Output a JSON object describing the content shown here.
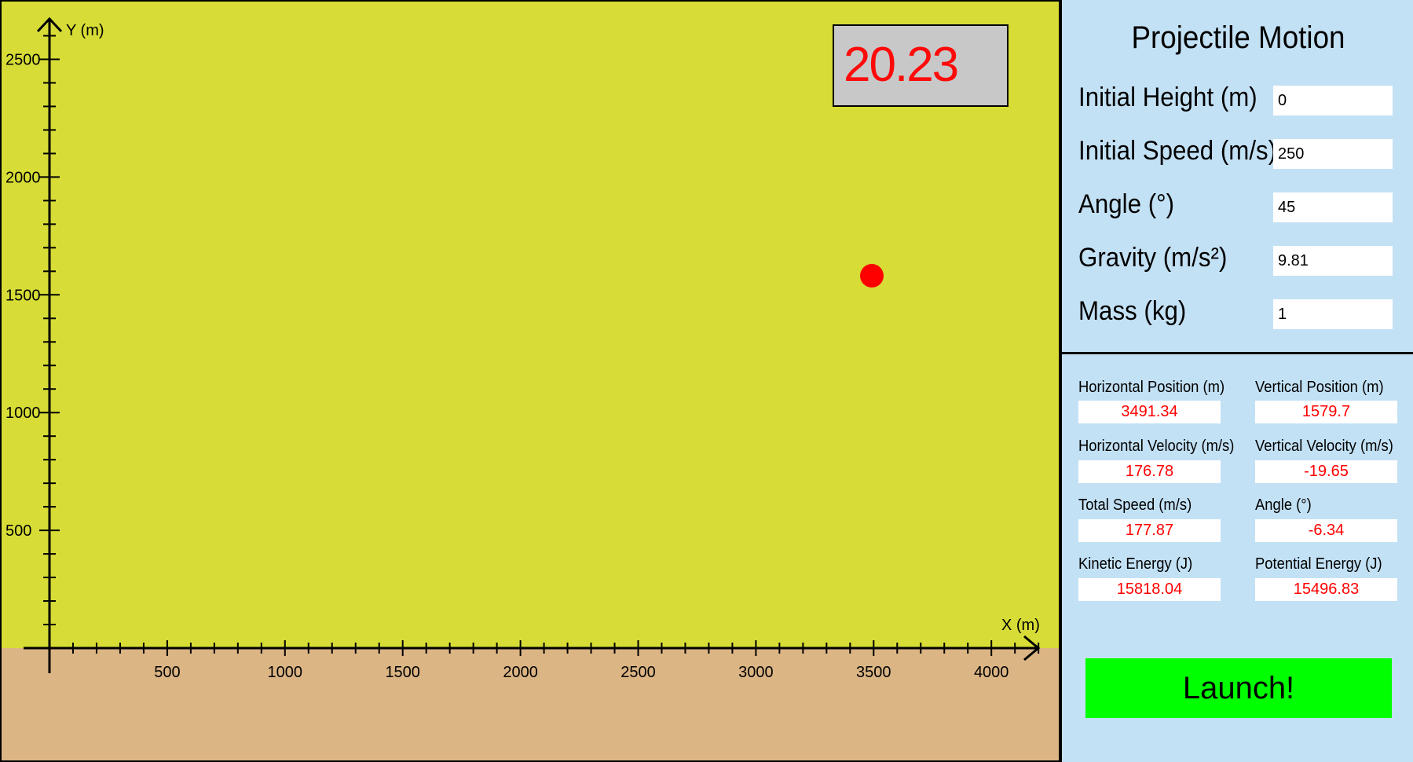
{
  "timer": "20.23",
  "plot": {
    "x_axis_label": "X (m)",
    "y_axis_label": "Y (m)",
    "x_ticks": [
      "500",
      "1000",
      "1500",
      "2000",
      "2500",
      "3000",
      "3500",
      "4000"
    ],
    "y_ticks": [
      "500",
      "1000",
      "1500",
      "2000",
      "2500"
    ],
    "projectile_position_m": {
      "x": 3491.34,
      "y": 1579.7
    },
    "colors": {
      "sky": "#d7dd36",
      "ground": "#dcb584",
      "projectile": "#ff0000"
    }
  },
  "panel": {
    "title": "Projectile Motion",
    "inputs": [
      {
        "label": "Initial Height (m)",
        "value": "0"
      },
      {
        "label": "Initial Speed (m/s)",
        "value": "250"
      },
      {
        "label": "Angle (°)",
        "value": "45"
      },
      {
        "label": "Gravity (m/s²)",
        "value": "9.81"
      },
      {
        "label": "Mass (kg)",
        "value": "1"
      }
    ],
    "outputs": [
      {
        "label": "Horizontal Position (m)",
        "value": "3491.34"
      },
      {
        "label": "Vertical Position (m)",
        "value": "1579.7"
      },
      {
        "label": "Horizontal Velocity (m/s)",
        "value": "176.78"
      },
      {
        "label": "Vertical Velocity (m/s)",
        "value": "-19.65"
      },
      {
        "label": "Total Speed (m/s)",
        "value": "177.87"
      },
      {
        "label": "Angle (°)",
        "value": "-6.34"
      },
      {
        "label": "Kinetic Energy (J)",
        "value": "15818.04"
      },
      {
        "label": "Potential Energy (J)",
        "value": "15496.83"
      }
    ],
    "launch_label": "Launch!",
    "colors": {
      "background": "#c3e1f5",
      "launch": "#00ff00",
      "output_text": "#ff0000"
    }
  }
}
